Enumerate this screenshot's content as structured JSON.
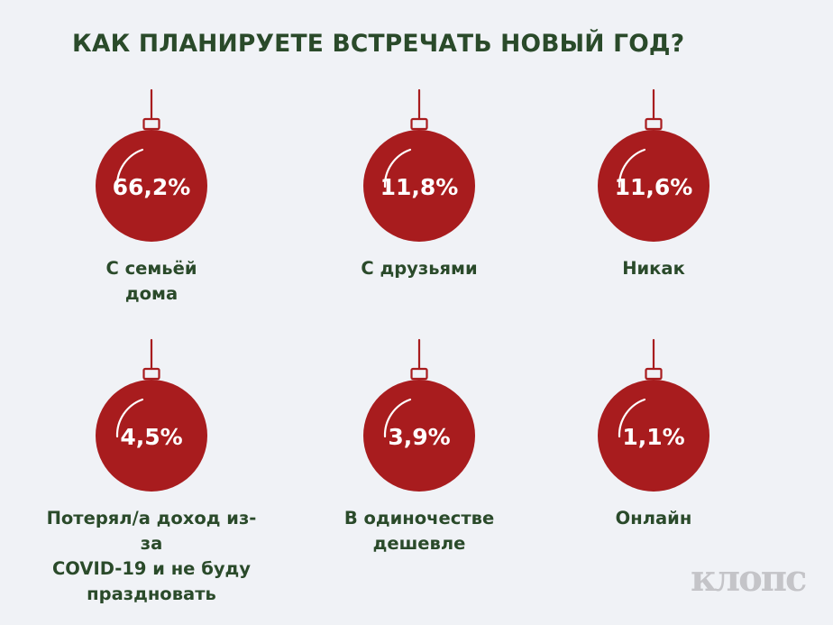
{
  "title": "КАК ПЛАНИРУЕТЕ ВСТРЕЧАТЬ НОВЫЙ ГОД?",
  "logo": "клопс",
  "colors": {
    "background": "#F0F2F6",
    "ornament": "#A81C1E",
    "text": "#2A4A2A",
    "percent_text": "#FFFFFF",
    "logo": "#C4C4C8"
  },
  "chart_data": {
    "type": "bar",
    "categories": [
      "С семьёй дома",
      "С друзьями",
      "Никак",
      "Потерял/а доход из-за COVID-19 и не буду праздновать",
      "В одиночестве дешевле",
      "Онлайн"
    ],
    "values": [
      66.2,
      11.8,
      11.6,
      4.5,
      3.9,
      1.1
    ],
    "title": "КАК ПЛАНИРУЕТЕ ВСТРЕЧАТЬ НОВЫЙ ГОД?"
  },
  "items": [
    {
      "percent": "66,2%",
      "value": 66.2,
      "label_lines": [
        "С семьёй",
        "дома"
      ]
    },
    {
      "percent": "11,8%",
      "value": 11.8,
      "label_lines": [
        "С друзьями"
      ]
    },
    {
      "percent": "11,6%",
      "value": 11.6,
      "label_lines": [
        "Никак"
      ]
    },
    {
      "percent": "4,5%",
      "value": 4.5,
      "label_lines": [
        "Потерял/а доход из-за",
        "COVID-19 и не буду",
        "праздновать"
      ]
    },
    {
      "percent": "3,9%",
      "value": 3.9,
      "label_lines": [
        "В одиночестве",
        "дешевле"
      ]
    },
    {
      "percent": "1,1%",
      "value": 1.1,
      "label_lines": [
        "Онлайн"
      ]
    }
  ]
}
